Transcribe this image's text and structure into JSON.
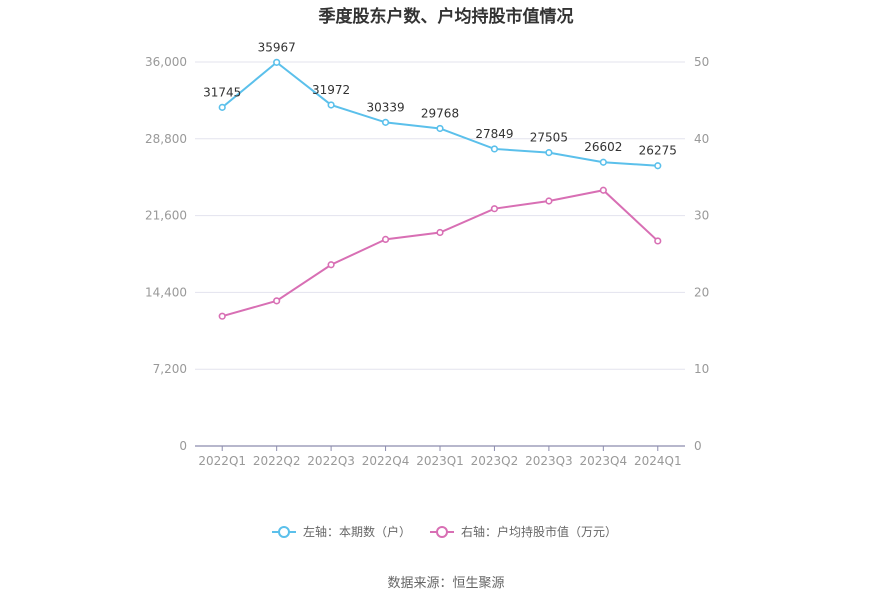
{
  "chart_data": {
    "type": "line",
    "title": "季度股东户数、户均持股市值情况",
    "categories": [
      "2022Q1",
      "2022Q2",
      "2022Q3",
      "2022Q4",
      "2023Q1",
      "2023Q2",
      "2023Q3",
      "2023Q4",
      "2024Q1"
    ],
    "left_axis": {
      "min": 0,
      "max": 36000,
      "ticks": [
        "0",
        "7,200",
        "14,400",
        "21,600",
        "28,800",
        "36,000"
      ],
      "tick_values": [
        0,
        7200,
        14400,
        21600,
        28800,
        36000
      ]
    },
    "right_axis": {
      "min": 0,
      "max": 50,
      "ticks": [
        "0",
        "10",
        "20",
        "30",
        "40",
        "50"
      ],
      "tick_values": [
        0,
        10,
        20,
        30,
        40,
        50
      ]
    },
    "series": [
      {
        "name": "左轴：本期数（户）",
        "axis": "left",
        "color": "#5bc0eb",
        "values": [
          31745,
          35967,
          31972,
          30339,
          29768,
          27849,
          27505,
          26602,
          26275
        ],
        "labels": [
          "31745",
          "35967",
          "31972",
          "30339",
          "29768",
          "27849",
          "27505",
          "26602",
          "26275"
        ]
      },
      {
        "name": "右轴：户均持股市值（万元）",
        "axis": "right",
        "color": "#d86fb4",
        "values": [
          16.9,
          18.9,
          23.6,
          26.9,
          27.8,
          30.9,
          31.9,
          33.3,
          26.7
        ]
      }
    ],
    "grid": true,
    "legend_position": "bottom"
  },
  "source": "数据来源：恒生聚源"
}
